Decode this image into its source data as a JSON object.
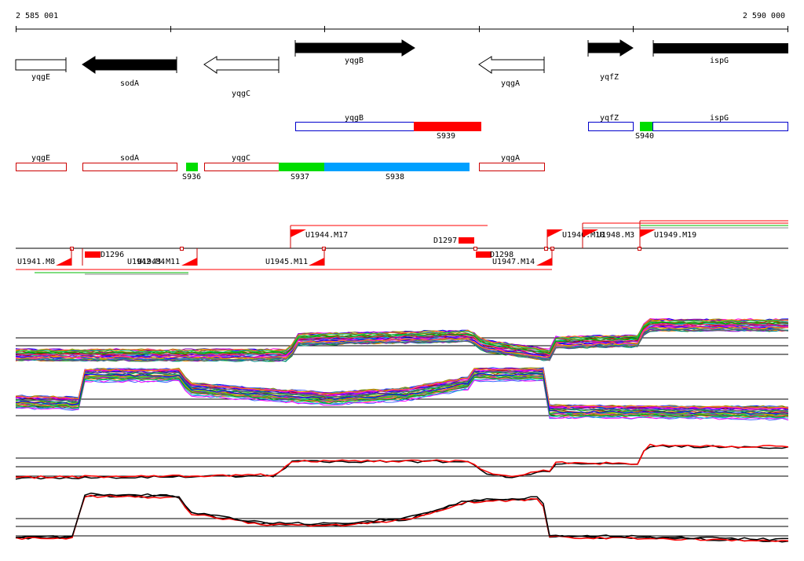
{
  "coordinates": {
    "start_label": "2 585 001",
    "end_label": "2 590 000"
  },
  "colors": {
    "black": "#000000",
    "red": "#ff0000",
    "green": "#00dd00",
    "blue": "#00a0ff",
    "outline_blue": "#0000cc",
    "outline_red": "#cc0000"
  },
  "genes": {
    "yqgE": "yqgE",
    "sodA": "sodA",
    "yqgC": "yqgC",
    "yqgB": "yqgB",
    "yqgA": "yqgA",
    "yqfZ": "yqfZ",
    "ispG": "ispG"
  },
  "segments": {
    "S936": "S936",
    "S937": "S937",
    "S938": "S938",
    "S939": "S939",
    "S940": "S940"
  },
  "features": {
    "U1941_M8": "U1941.M8",
    "D1296": "D1296",
    "U1942_M4": "U1942.M4",
    "U1943_M11": "U1943.M11",
    "U1944_M17": "U1944.M17",
    "U1945_M11": "U1945.M11",
    "D1297": "D1297",
    "D1298": "D1298",
    "U1947_M14": "U1947.M14",
    "U1946_M10": "U1946.M10",
    "U1948_M3": "U1948.M3",
    "U1949_M19": "U1949.M19"
  }
}
